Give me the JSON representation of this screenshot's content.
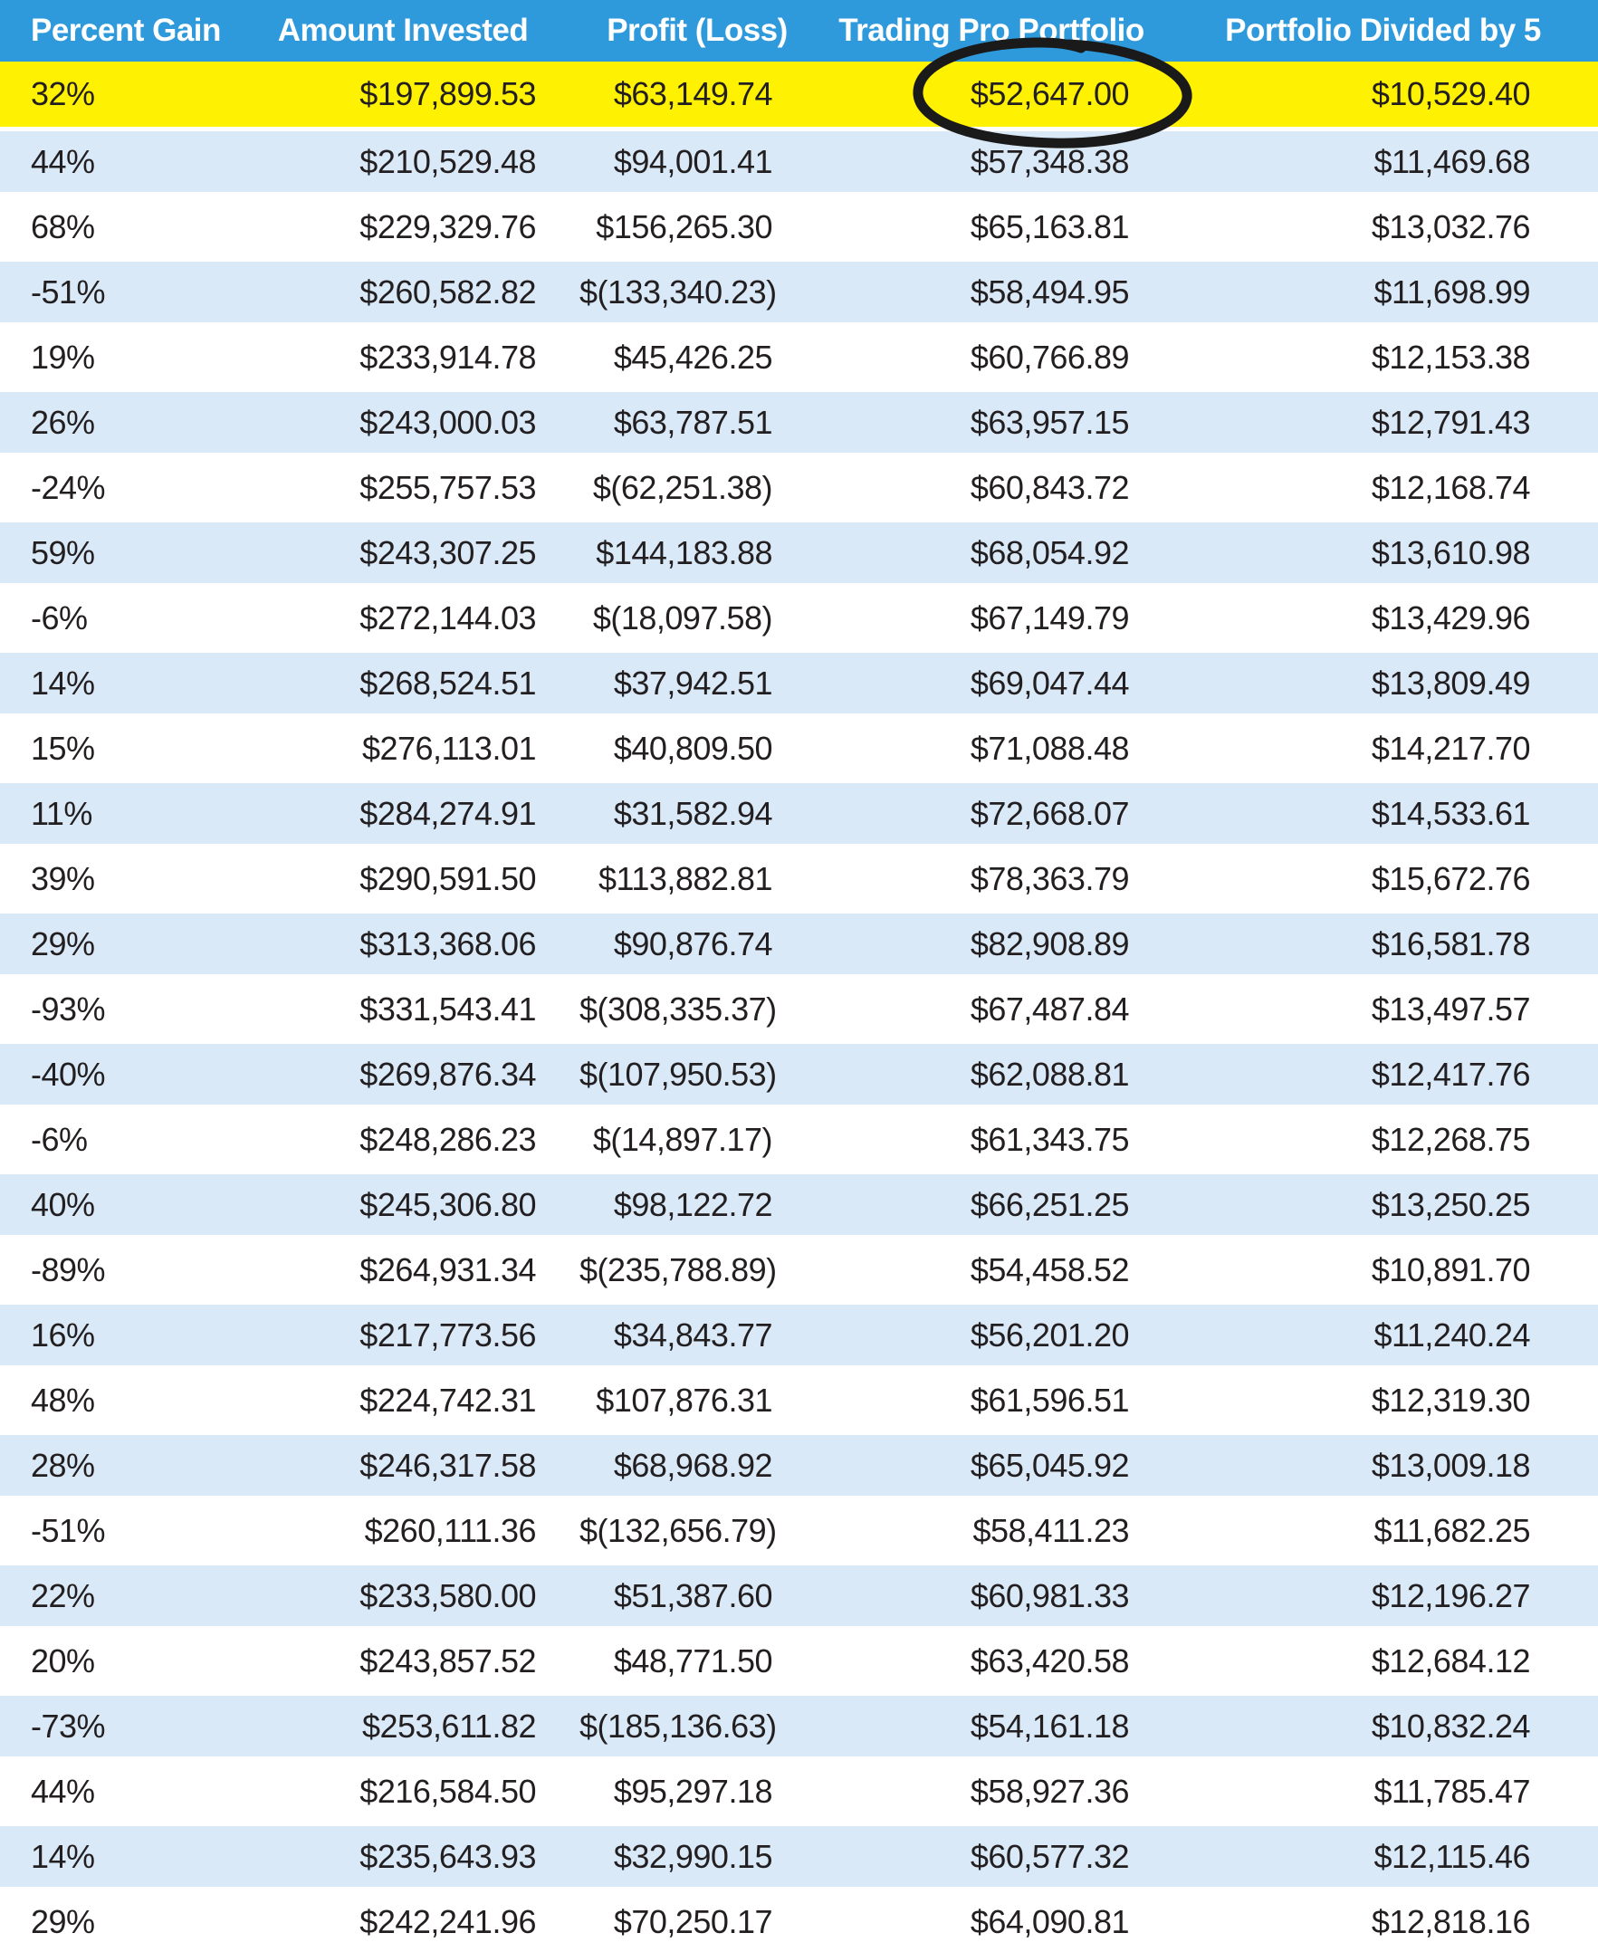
{
  "chart_data": {
    "type": "table",
    "title": "Trading returns comparison table",
    "columns": [
      "Percent Gain",
      "Amount Invested",
      "Profit (Loss)",
      "Trading Pro Portfolio",
      "Portfolio Divided by 5"
    ],
    "rows": [
      [
        "32%",
        "$197,899.53",
        "$63,149.74",
        "$52,647.00",
        "$10,529.40"
      ],
      [
        "44%",
        "$210,529.48",
        "$94,001.41",
        "$57,348.38",
        "$11,469.68"
      ],
      [
        "68%",
        "$229,329.76",
        "$156,265.30",
        "$65,163.81",
        "$13,032.76"
      ],
      [
        "-51%",
        "$260,582.82",
        "$(133,340.23)",
        "$58,494.95",
        "$11,698.99"
      ],
      [
        "19%",
        "$233,914.78",
        "$45,426.25",
        "$60,766.89",
        "$12,153.38"
      ],
      [
        "26%",
        "$243,000.03",
        "$63,787.51",
        "$63,957.15",
        "$12,791.43"
      ],
      [
        "-24%",
        "$255,757.53",
        "$(62,251.38)",
        "$60,843.72",
        "$12,168.74"
      ],
      [
        "59%",
        "$243,307.25",
        "$144,183.88",
        "$68,054.92",
        "$13,610.98"
      ],
      [
        "-6%",
        "$272,144.03",
        "$(18,097.58)",
        "$67,149.79",
        "$13,429.96"
      ],
      [
        "14%",
        "$268,524.51",
        "$37,942.51",
        "$69,047.44",
        "$13,809.49"
      ],
      [
        "15%",
        "$276,113.01",
        "$40,809.50",
        "$71,088.48",
        "$14,217.70"
      ],
      [
        "11%",
        "$284,274.91",
        "$31,582.94",
        "$72,668.07",
        "$14,533.61"
      ],
      [
        "39%",
        "$290,591.50",
        "$113,882.81",
        "$78,363.79",
        "$15,672.76"
      ],
      [
        "29%",
        "$313,368.06",
        "$90,876.74",
        "$82,908.89",
        "$16,581.78"
      ],
      [
        "-93%",
        "$331,543.41",
        "$(308,335.37)",
        "$67,487.84",
        "$13,497.57"
      ],
      [
        "-40%",
        "$269,876.34",
        "$(107,950.53)",
        "$62,088.81",
        "$12,417.76"
      ],
      [
        "-6%",
        "$248,286.23",
        "$(14,897.17)",
        "$61,343.75",
        "$12,268.75"
      ],
      [
        "40%",
        "$245,306.80",
        "$98,122.72",
        "$66,251.25",
        "$13,250.25"
      ],
      [
        "-89%",
        "$264,931.34",
        "$(235,788.89)",
        "$54,458.52",
        "$10,891.70"
      ],
      [
        "16%",
        "$217,773.56",
        "$34,843.77",
        "$56,201.20",
        "$11,240.24"
      ],
      [
        "48%",
        "$224,742.31",
        "$107,876.31",
        "$61,596.51",
        "$12,319.30"
      ],
      [
        "28%",
        "$246,317.58",
        "$68,968.92",
        "$65,045.92",
        "$13,009.18"
      ],
      [
        "-51%",
        "$260,111.36",
        "$(132,656.79)",
        "$58,411.23",
        "$11,682.25"
      ],
      [
        "22%",
        "$233,580.00",
        "$51,387.60",
        "$60,981.33",
        "$12,196.27"
      ],
      [
        "20%",
        "$243,857.52",
        "$48,771.50",
        "$63,420.58",
        "$12,684.12"
      ],
      [
        "-73%",
        "$253,611.82",
        "$(185,136.63)",
        "$54,161.18",
        "$10,832.24"
      ],
      [
        "44%",
        "$216,584.50",
        "$95,297.18",
        "$58,927.36",
        "$11,785.47"
      ],
      [
        "14%",
        "$235,643.93",
        "$32,990.15",
        "$60,577.32",
        "$12,115.46"
      ],
      [
        "29%",
        "$242,241.96",
        "$70,250.17",
        "$64,090.81",
        "$12,818.16"
      ]
    ],
    "layout": {
      "header_position": "top",
      "grid": "alternating-row-stripes",
      "first_data_row_highlighted": true
    }
  },
  "annotations": {
    "highlighted_row_index": 0,
    "circled_cell": {
      "row_index": 0,
      "column": "Trading Pro Portfolio",
      "value": "$52,647.00",
      "style": "hand-drawn-ellipse"
    }
  },
  "colors": {
    "header_bg": "#2E99DB",
    "header_text": "#FFFFFF",
    "highlight_yellow": "#FFF102",
    "stripe_blue": "#D9E9F8",
    "row_white": "#FFFFFF",
    "text": "#231F20",
    "circle": "#1A1A1A"
  }
}
